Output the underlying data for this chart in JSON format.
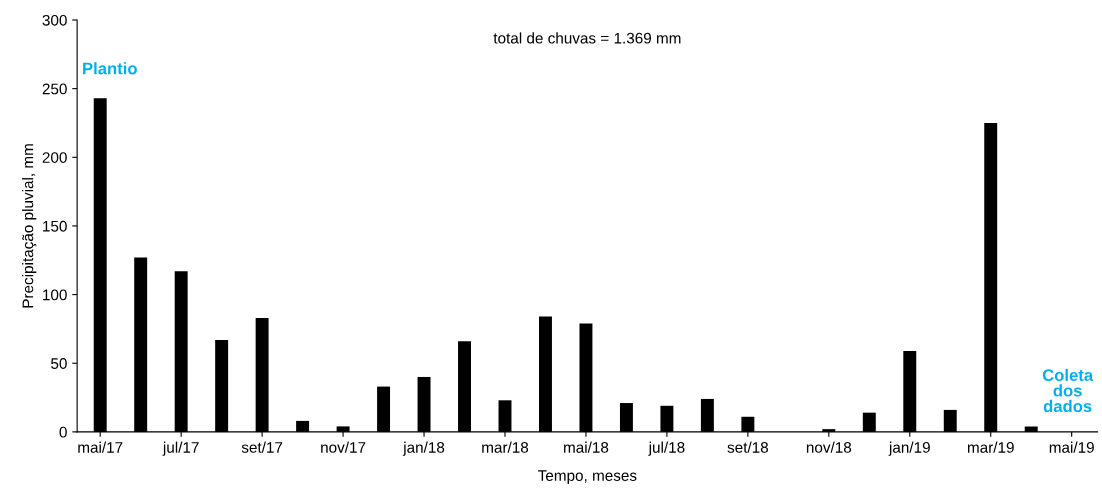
{
  "chart_data": {
    "type": "bar",
    "xlabel": "Tempo, meses",
    "ylabel": "Precipitação pluvial, mm",
    "categories": [
      "mai/17",
      null,
      "jul/17",
      null,
      "set/17",
      null,
      "nov/17",
      null,
      "jan/18",
      null,
      "mar/18",
      null,
      "mai/18",
      null,
      "jul/18",
      null,
      "set/18",
      null,
      "nov/18",
      null,
      "jan/19",
      null,
      "mar/19",
      null,
      "mai/19"
    ],
    "values": [
      243,
      127,
      117,
      67,
      83,
      8,
      4,
      33,
      40,
      66,
      23,
      84,
      79,
      21,
      19,
      24,
      11,
      0,
      2,
      14,
      59,
      16,
      225,
      4,
      null
    ],
    "color": "#000000",
    "ylim": [
      0,
      300
    ],
    "yticks": [
      0,
      50,
      100,
      150,
      200,
      250,
      300
    ],
    "grid": false,
    "legend": false,
    "annotations": [
      "total de chuvas = 1.369 mm",
      "Plantio",
      "Coleta\ndos\ndados"
    ]
  }
}
